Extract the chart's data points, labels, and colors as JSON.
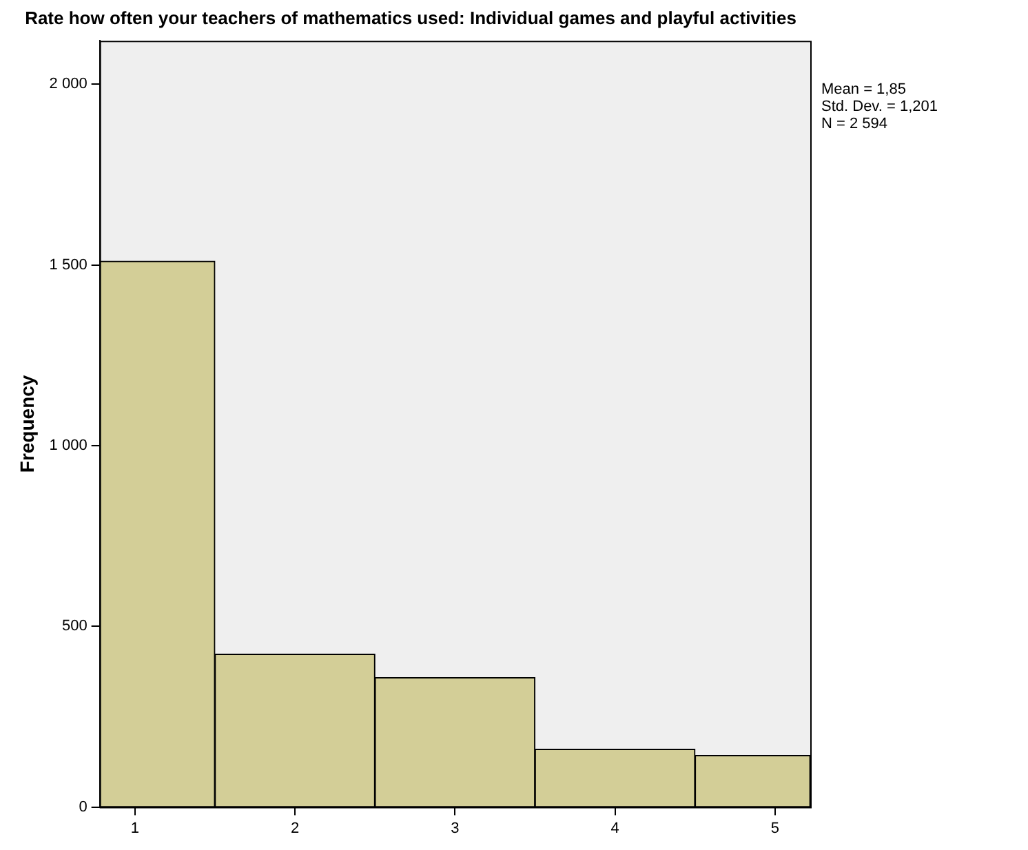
{
  "chart_data": {
    "type": "histogram",
    "title": "Rate how often your teachers of mathematics used: Individual games and playful activities",
    "ylabel": "Frequency",
    "bins": [
      0.78,
      1.5,
      2.5,
      3.5,
      4.5,
      5.22
    ],
    "values": [
      1510,
      423,
      358,
      160,
      143
    ],
    "color": "#d3ce97",
    "xlim": [
      0.78,
      5.22
    ],
    "xticks": [
      1,
      2,
      3,
      4,
      5
    ],
    "ylim": [
      0,
      2120
    ],
    "yticks": [
      0,
      500,
      {
        "value": 1000,
        "label": "1 000"
      },
      {
        "value": 1500,
        "label": "1 500"
      },
      {
        "value": 2000,
        "label": "2 000"
      }
    ],
    "grid": false,
    "legend": false,
    "annotations": [
      "Mean = 1,85",
      "Std. Dev. = 1,201",
      "N = 2 594"
    ]
  }
}
